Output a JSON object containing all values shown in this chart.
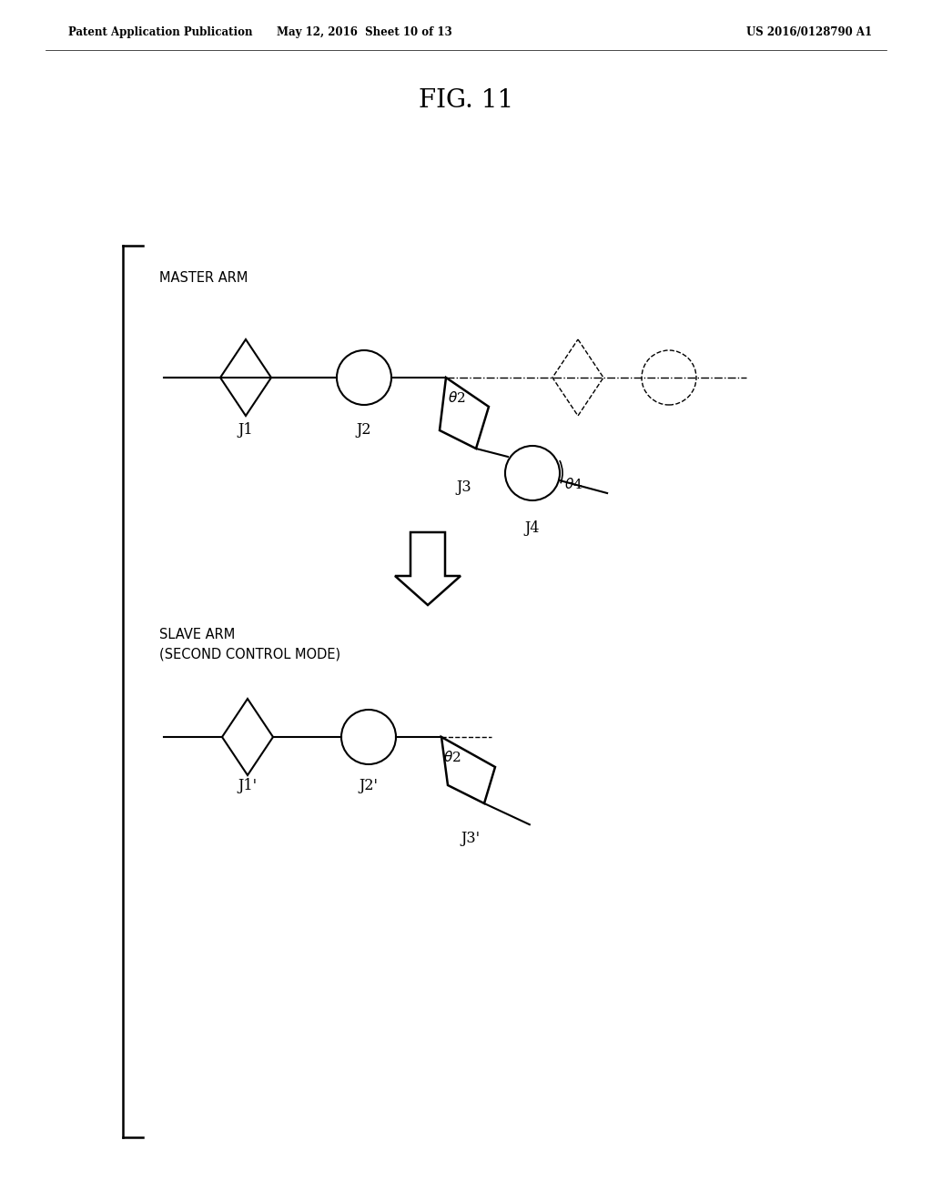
{
  "bg_color": "#ffffff",
  "header_left": "Patent Application Publication",
  "header_mid": "May 12, 2016  Sheet 10 of 13",
  "header_right": "US 2016/0128790 A1",
  "fig_title": "FIG. 11",
  "master_label": "MASTER ARM",
  "slave_label": "SLAVE ARM\n(SECOND CONTROL MODE)"
}
